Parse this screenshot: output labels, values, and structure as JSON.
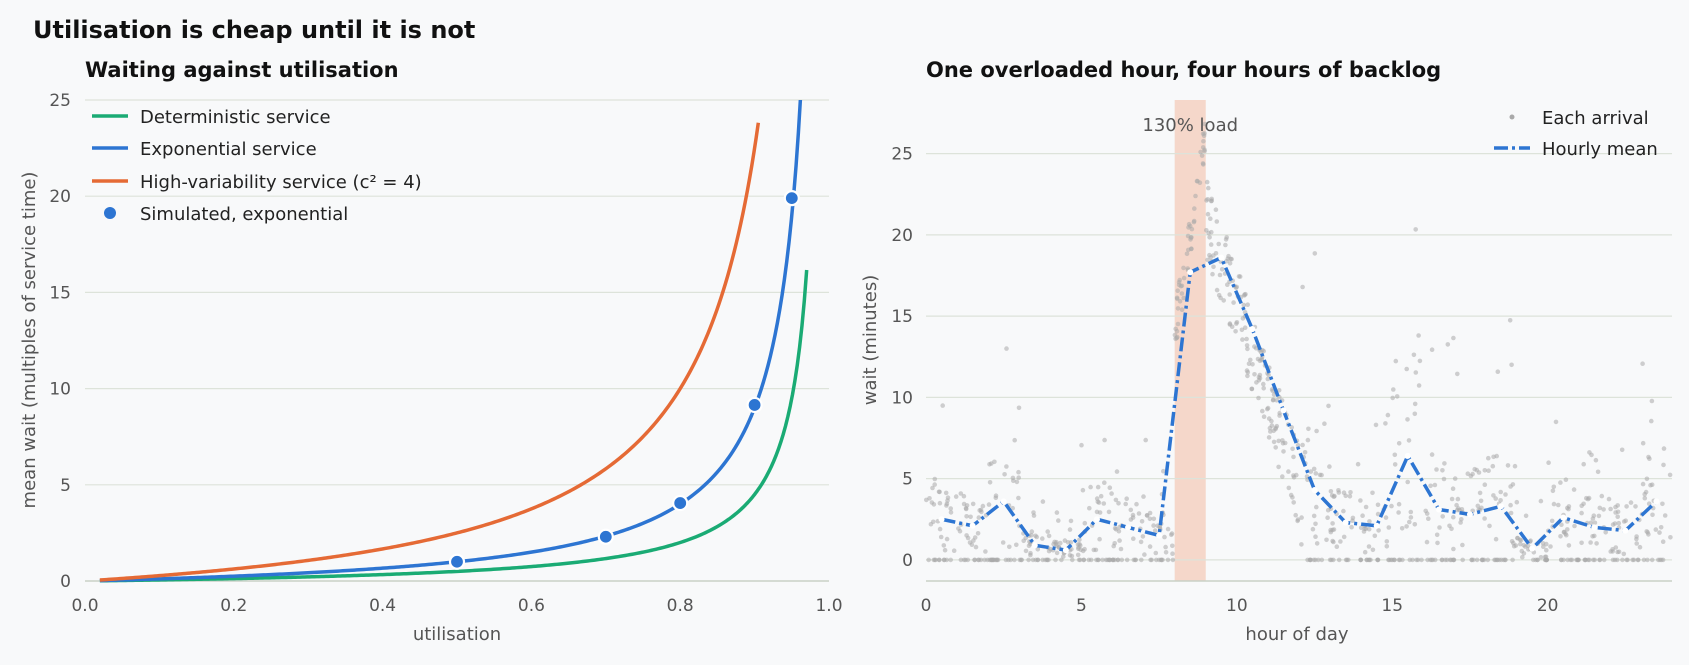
{
  "suptitle": "Utilisation is cheap until it is not",
  "chart_data": [
    {
      "type": "line",
      "title": "Waiting against utilisation",
      "xlabel": "utilisation",
      "ylabel": "mean wait (multiples of service time)",
      "xlim": [
        0.0,
        1.0
      ],
      "ylim": [
        0,
        25
      ],
      "xticks": [
        "0.0",
        "0.2",
        "0.4",
        "0.6",
        "0.8",
        "1.0"
      ],
      "yticks": [
        "0",
        "5",
        "10",
        "15",
        "20",
        "25"
      ],
      "grid": "horizontal",
      "legend_position": "top-left",
      "series": [
        {
          "name": "Deterministic service",
          "color": "#1aab74",
          "formula": "0.5*rho/(1-rho)",
          "x_range": [
            0.02,
            0.97
          ]
        },
        {
          "name": "Exponential service",
          "color": "#2d75d2",
          "formula": "rho/(1-rho)",
          "x_range": [
            0.02,
            0.962
          ]
        },
        {
          "name": "High-variability service (c² = 4)",
          "color": "#e56a35",
          "formula": "2.5*rho/(1-rho)",
          "x_range": [
            0.02,
            0.905
          ]
        }
      ],
      "points": {
        "name": "Simulated, exponential",
        "color": "#2d75d2",
        "x": [
          0.5,
          0.7,
          0.8,
          0.9,
          0.95
        ],
        "y": [
          1.0,
          2.3,
          4.05,
          9.15,
          19.9
        ]
      }
    },
    {
      "type": "scatter",
      "title": "One overloaded hour, four hours of backlog",
      "xlabel": "hour of day",
      "ylabel": "wait (minutes)",
      "xlim": [
        0,
        24
      ],
      "ylim": [
        -1.3,
        28.3
      ],
      "xticks": [
        "0",
        "5",
        "10",
        "15",
        "20"
      ],
      "yticks": [
        "0",
        "5",
        "10",
        "15",
        "20",
        "25"
      ],
      "grid": "horizontal",
      "legend_position": "top-right",
      "shaded_region": {
        "x": [
          8,
          9
        ],
        "label": "130% load",
        "color": "#f3c9b5"
      },
      "scatter_series": {
        "name": "Each arrival",
        "color": "#a9a9a9"
      },
      "hourly_mean": {
        "name": "Hourly mean",
        "color": "#2d75d2",
        "x": [
          0.5,
          1.5,
          2.5,
          3.5,
          4.5,
          5.5,
          6.5,
          7.5,
          8.5,
          9.5,
          10.5,
          11.5,
          12.5,
          13.5,
          14.5,
          15.5,
          16.5,
          17.5,
          18.5,
          19.5,
          20.5,
          21.5,
          22.5,
          23.5
        ],
        "y": [
          2.5,
          2.1,
          3.6,
          0.9,
          0.6,
          2.5,
          2.0,
          1.5,
          17.7,
          18.6,
          14.2,
          9.2,
          4.3,
          2.3,
          2.1,
          6.4,
          3.1,
          2.8,
          3.3,
          0.7,
          2.6,
          2.0,
          1.8,
          3.6
        ]
      }
    }
  ]
}
